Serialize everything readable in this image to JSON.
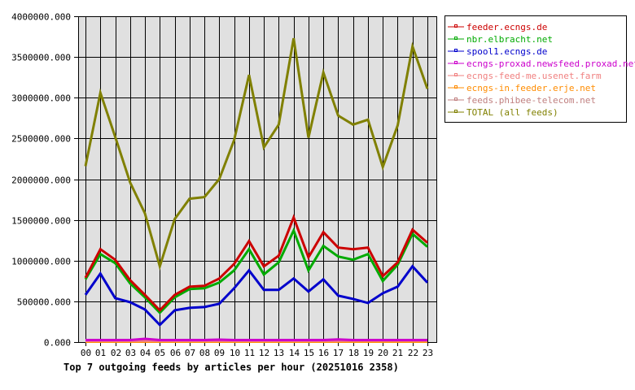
{
  "chart_data": {
    "type": "line",
    "title": "Top 7 outgoing feeds by articles per hour (20251016 2358)",
    "xlabel": "",
    "ylabel": "",
    "ylim": [
      0,
      4000000
    ],
    "yticks": [
      0,
      500000,
      1000000,
      1500000,
      2000000,
      2500000,
      3000000,
      3500000,
      4000000
    ],
    "ytick_labels": [
      "0.000",
      "500000.000",
      "1000000.000",
      "1500000.000",
      "2000000.000",
      "2500000.000",
      "3000000.000",
      "3500000.000",
      "4000000.000"
    ],
    "categories": [
      "00",
      "01",
      "02",
      "03",
      "04",
      "05",
      "06",
      "07",
      "08",
      "09",
      "10",
      "11",
      "12",
      "13",
      "14",
      "15",
      "16",
      "17",
      "18",
      "19",
      "20",
      "21",
      "22",
      "23"
    ],
    "grid": true,
    "legend_position": "right-top",
    "series": [
      {
        "name": "feeder.ecngs.de",
        "color": "#cc0000",
        "values": [
          790000,
          1140000,
          1010000,
          760000,
          580000,
          390000,
          580000,
          680000,
          690000,
          780000,
          960000,
          1240000,
          930000,
          1060000,
          1530000,
          1040000,
          1350000,
          1160000,
          1140000,
          1160000,
          810000,
          980000,
          1380000,
          1220000
        ]
      },
      {
        "name": "nbr.elbracht.net",
        "color": "#00aa00",
        "values": [
          770000,
          1080000,
          970000,
          720000,
          550000,
          360000,
          550000,
          650000,
          660000,
          730000,
          880000,
          1140000,
          830000,
          980000,
          1370000,
          880000,
          1180000,
          1050000,
          1010000,
          1080000,
          750000,
          950000,
          1330000,
          1170000
        ]
      },
      {
        "name": "spool1.ecngs.de",
        "color": "#0000cc",
        "values": [
          580000,
          840000,
          540000,
          490000,
          400000,
          210000,
          390000,
          420000,
          430000,
          470000,
          660000,
          880000,
          640000,
          640000,
          780000,
          620000,
          770000,
          570000,
          530000,
          480000,
          600000,
          680000,
          930000,
          730000
        ]
      },
      {
        "name": "ecngs-proxad.newsfeed.proxad.net",
        "color": "#cc00cc",
        "values": [
          25000,
          25000,
          25000,
          25000,
          40000,
          25000,
          25000,
          25000,
          25000,
          30000,
          25000,
          25000,
          25000,
          25000,
          25000,
          25000,
          25000,
          32000,
          25000,
          25000,
          25000,
          25000,
          25000,
          25000
        ]
      },
      {
        "name": "ecngs-feed-me.usenet.farm",
        "color": "#f08080",
        "values": [
          15000,
          15000,
          15000,
          15000,
          15000,
          15000,
          15000,
          15000,
          15000,
          15000,
          15000,
          15000,
          15000,
          15000,
          15000,
          15000,
          15000,
          15000,
          18000,
          18000,
          18000,
          18000,
          18000,
          18000
        ]
      },
      {
        "name": "ecngs-in.feeder.erje.net",
        "color": "#ff8c00",
        "values": [
          5000,
          5000,
          5000,
          5000,
          5000,
          5000,
          5000,
          5000,
          5000,
          5000,
          5000,
          5000,
          5000,
          5000,
          5000,
          5000,
          5000,
          5000,
          5000,
          5000,
          5000,
          5000,
          5000,
          5000
        ]
      },
      {
        "name": "feeds.phibee-telecom.net",
        "color": "#c08080",
        "values": [
          12000,
          12000,
          12000,
          12000,
          12000,
          12000,
          12000,
          12000,
          12000,
          12000,
          12000,
          12000,
          12000,
          12000,
          12000,
          12000,
          12000,
          12000,
          14000,
          14000,
          14000,
          14000,
          14000,
          14000
        ]
      },
      {
        "name": "TOTAL (all feeds)",
        "color": "#808000",
        "values": [
          2160000,
          3060000,
          2520000,
          1960000,
          1580000,
          930000,
          1510000,
          1760000,
          1780000,
          2000000,
          2480000,
          3280000,
          2390000,
          2670000,
          3730000,
          2510000,
          3310000,
          2780000,
          2670000,
          2730000,
          2150000,
          2660000,
          3630000,
          3110000
        ]
      }
    ]
  },
  "colors": {
    "plot_background": "#e0e0e0",
    "grid": "#000000",
    "axis": "#000000",
    "page_background": "#ffffff"
  }
}
